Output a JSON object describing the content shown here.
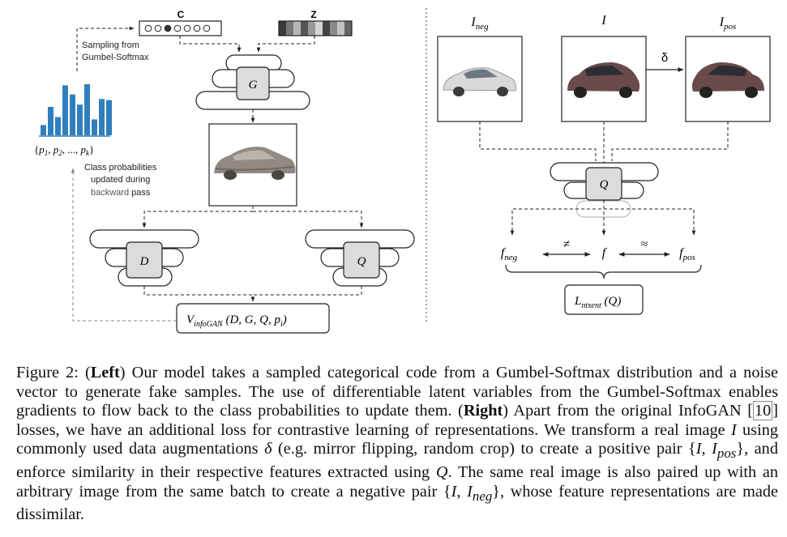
{
  "left": {
    "code_c_label": "C",
    "code_z_label": "Z",
    "sampling_text": [
      "Sampling from",
      "Gumbel-Softmax"
    ],
    "probs_label_parts": [
      "{",
      "p",
      "1",
      ", ",
      "p",
      "2",
      ", ..., ",
      "p",
      "k",
      "}"
    ],
    "class_prob_text": [
      "Class probabilities",
      "updated during"
    ],
    "backward_word": "backward",
    "pass_word": " pass",
    "generator": "G",
    "discriminator": "D",
    "q_network": "Q",
    "loss_main": "V",
    "loss_sub": "infoGAN",
    "loss_args_1": " (D, G, Q, p",
    "loss_args_sub": "i",
    "loss_args_2": ")"
  },
  "right": {
    "img_neg_main": "I",
    "img_neg_sub": "neg",
    "img_main": "I",
    "img_pos_main": "I",
    "img_pos_sub": "pos",
    "delta": "δ",
    "q_network": "Q",
    "f_neg_main": "f",
    "f_neg_sub": "neg",
    "not_equal": "≠",
    "f": "f",
    "approx": "≈",
    "f_pos_main": "f",
    "f_pos_sub": "pos",
    "loss_main": "L",
    "loss_sub": "ntxent",
    "loss_args": " (Q)"
  },
  "caption": {
    "figure_label": "Figure 2: (",
    "left_word": "Left",
    "part1": ") Our model takes a sampled categorical code from a Gumbel-Softmax distribution and a noise vector to generate fake samples. The use of differentiable latent variables from the Gumbel-Softmax enables gradients to flow back to the class probabilities to update them. (",
    "right_word": "Right",
    "part2": ") Apart from the original InfoGAN [",
    "citation": "10",
    "part3": "] losses, we have an additional loss for contrastive learning of representations. We transform a real image ",
    "sym_I": "I",
    "part4": " using commonly used data augmentations ",
    "sym_delta": "δ",
    "part5": " (e.g. mirror flipping, random crop) to create a positive pair {",
    "pair_pos": "I, I",
    "pair_pos_sub": "pos",
    "part6": "}, and enforce similarity in their respective features extracted using ",
    "sym_Q": "Q",
    "part7": ". The same real image is also paired up with an arbitrary image from the same batch to create a negative pair {",
    "pair_neg": "I, I",
    "pair_neg_sub": "neg",
    "part8": "}, whose feature representations are made dissimilar."
  },
  "histogram": {
    "bars": [
      0.18,
      0.5,
      0.32,
      0.88,
      0.72,
      0.54,
      0.9,
      0.28,
      0.64,
      0.62
    ],
    "color": "#2f7fbe"
  },
  "colors": {
    "block_fill": "#dcdcdc",
    "dashed": "#222222",
    "backward_word": "#555555",
    "faded_layer": "#bbbbbb"
  }
}
